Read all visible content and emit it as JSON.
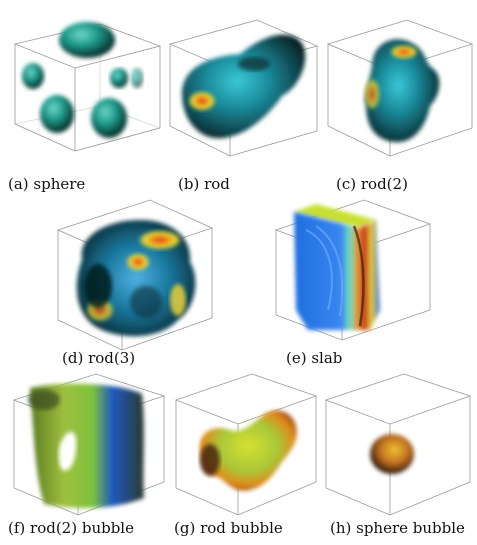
{
  "captions": {
    "a": "(a) sphere",
    "b": "(b) rod",
    "c": "(c) rod(2)",
    "d": "(d) rod(3)",
    "e": "(e) slab",
    "f": "(f) rod(2) bubble",
    "g": "(g) rod bubble",
    "h": "(h) sphere bubble"
  },
  "colors": {
    "box_edge": "#9a9a9a",
    "dark_teal": "#0b4d4a",
    "teal": "#1f9c8c",
    "blue": "#2b6de0",
    "green": "#7cc23c",
    "yellow": "#e8d23a",
    "orange": "#f08a1c",
    "red": "#e0301c"
  }
}
